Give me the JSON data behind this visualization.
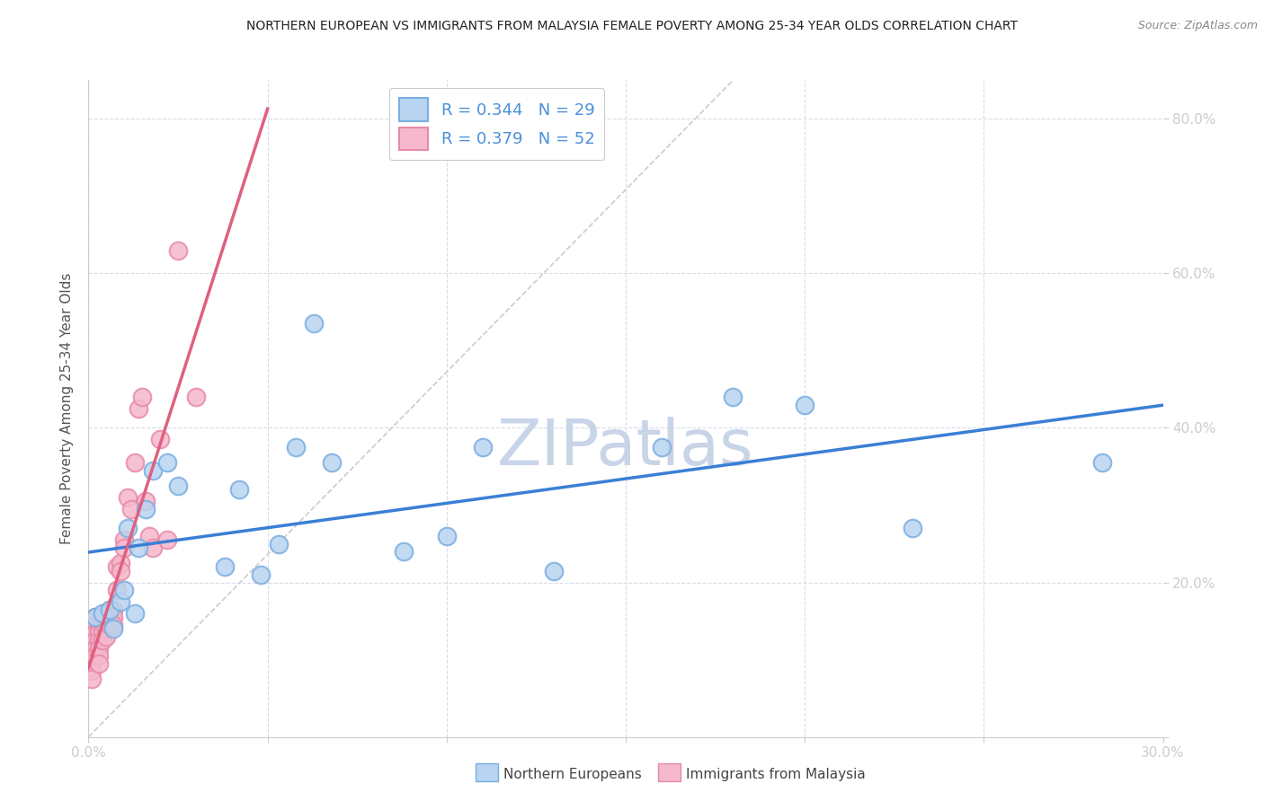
{
  "title": "NORTHERN EUROPEAN VS IMMIGRANTS FROM MALAYSIA FEMALE POVERTY AMONG 25-34 YEAR OLDS CORRELATION CHART",
  "source": "Source: ZipAtlas.com",
  "ylabel": "Female Poverty Among 25-34 Year Olds",
  "xlim": [
    0.0,
    0.3
  ],
  "ylim": [
    0.0,
    0.85
  ],
  "xticks": [
    0.0,
    0.05,
    0.1,
    0.15,
    0.2,
    0.25,
    0.3
  ],
  "yticks": [
    0.0,
    0.2,
    0.4,
    0.6,
    0.8
  ],
  "ytick_labels": [
    "",
    "20.0%",
    "40.0%",
    "60.0%",
    "80.0%"
  ],
  "xtick_labels": [
    "0.0%",
    "",
    "",
    "",
    "",
    "",
    "30.0%"
  ],
  "blue_R": 0.344,
  "blue_N": 29,
  "pink_R": 0.379,
  "pink_N": 52,
  "blue_scatter_fill": "#b8d4f0",
  "blue_scatter_edge": "#7aaee0",
  "pink_scatter_fill": "#f5b8cc",
  "pink_scatter_edge": "#e88aa8",
  "blue_line_color": "#3a7fd5",
  "pink_line_color": "#e06080",
  "grid_color": "#d8dce8",
  "background_color": "#ffffff",
  "watermark": "ZIPatlas",
  "watermark_color": "#c8d4e8",
  "legend_label_blue": "Northern Europeans",
  "legend_label_pink": "Immigrants from Malaysia",
  "blue_scatter_x": [
    0.002,
    0.004,
    0.006,
    0.007,
    0.009,
    0.01,
    0.011,
    0.013,
    0.014,
    0.016,
    0.018,
    0.022,
    0.025,
    0.038,
    0.042,
    0.048,
    0.053,
    0.058,
    0.063,
    0.068,
    0.088,
    0.1,
    0.11,
    0.13,
    0.16,
    0.18,
    0.2,
    0.23,
    0.283
  ],
  "blue_scatter_y": [
    0.155,
    0.16,
    0.165,
    0.14,
    0.175,
    0.19,
    0.27,
    0.16,
    0.245,
    0.295,
    0.345,
    0.355,
    0.325,
    0.22,
    0.32,
    0.21,
    0.25,
    0.375,
    0.535,
    0.355,
    0.24,
    0.26,
    0.375,
    0.215,
    0.375,
    0.44,
    0.43,
    0.27,
    0.355
  ],
  "pink_scatter_x": [
    0.001,
    0.001,
    0.001,
    0.001,
    0.001,
    0.001,
    0.001,
    0.001,
    0.002,
    0.002,
    0.002,
    0.002,
    0.002,
    0.002,
    0.003,
    0.003,
    0.003,
    0.003,
    0.003,
    0.003,
    0.004,
    0.004,
    0.004,
    0.004,
    0.005,
    0.005,
    0.005,
    0.005,
    0.006,
    0.006,
    0.006,
    0.007,
    0.007,
    0.007,
    0.008,
    0.008,
    0.009,
    0.009,
    0.01,
    0.01,
    0.011,
    0.012,
    0.013,
    0.014,
    0.015,
    0.016,
    0.017,
    0.018,
    0.02,
    0.022,
    0.025,
    0.03
  ],
  "pink_scatter_y": [
    0.14,
    0.135,
    0.125,
    0.115,
    0.105,
    0.095,
    0.085,
    0.075,
    0.155,
    0.145,
    0.135,
    0.125,
    0.115,
    0.105,
    0.14,
    0.135,
    0.125,
    0.115,
    0.105,
    0.095,
    0.155,
    0.145,
    0.135,
    0.125,
    0.16,
    0.15,
    0.14,
    0.13,
    0.165,
    0.155,
    0.145,
    0.165,
    0.155,
    0.145,
    0.22,
    0.19,
    0.225,
    0.215,
    0.255,
    0.245,
    0.31,
    0.295,
    0.355,
    0.425,
    0.44,
    0.305,
    0.26,
    0.245,
    0.385,
    0.255,
    0.63,
    0.44
  ]
}
